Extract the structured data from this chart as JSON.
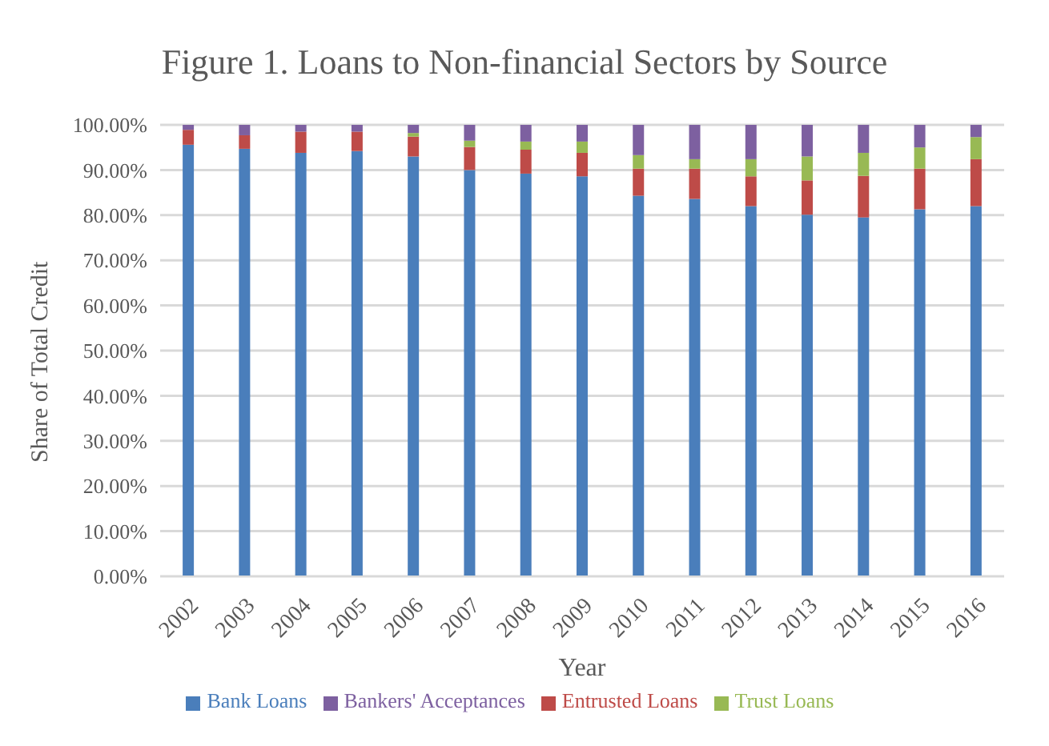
{
  "chart_data": {
    "type": "bar",
    "title": "Figure 1. Loans to Non-financial Sectors by Source",
    "xlabel": "Year",
    "ylabel": "Share of Total Credit",
    "stacked": true,
    "grid": "y",
    "legend": "bottom",
    "categories": [
      "2002",
      "2003",
      "2004",
      "2005",
      "2006",
      "2007",
      "2008",
      "2009",
      "2010",
      "2011",
      "2012",
      "2013",
      "2014",
      "2015",
      "2016"
    ],
    "ylim": [
      0,
      100
    ],
    "yticks": [
      {
        "value": 0,
        "label": "0.00%"
      },
      {
        "value": 10,
        "label": "10.00%"
      },
      {
        "value": 20,
        "label": "20.00%"
      },
      {
        "value": 30,
        "label": "30.00%"
      },
      {
        "value": 40,
        "label": "40.00%"
      },
      {
        "value": 50,
        "label": "50.00%"
      },
      {
        "value": 60,
        "label": "60.00%"
      },
      {
        "value": 70,
        "label": "70.00%"
      },
      {
        "value": 80,
        "label": "80.00%"
      },
      {
        "value": 90,
        "label": "90.00%"
      },
      {
        "value": 100,
        "label": "100.00%"
      }
    ],
    "series": [
      {
        "name": "Bank Loans",
        "color": "#4a7ebb",
        "values": [
          95.6,
          94.7,
          93.8,
          94.2,
          93.0,
          90.0,
          89.2,
          88.6,
          84.3,
          83.6,
          82.0,
          80.1,
          79.5,
          81.3,
          82.0
        ]
      },
      {
        "name": "Entrusted Loans",
        "color": "#be4b48",
        "values": [
          3.3,
          3.0,
          4.7,
          4.3,
          4.4,
          5.1,
          5.3,
          5.2,
          6.0,
          6.7,
          6.6,
          7.6,
          9.2,
          9.0,
          10.4
        ]
      },
      {
        "name": "Trust Loans",
        "color": "#98b954",
        "values": [
          0,
          0,
          0,
          0,
          0.8,
          1.4,
          1.8,
          2.5,
          3.0,
          2.1,
          3.8,
          5.3,
          5.1,
          4.7,
          4.9
        ]
      },
      {
        "name": "Bankers' Acceptances",
        "color": "#7d60a0",
        "values": [
          1.1,
          2.3,
          1.5,
          1.5,
          1.8,
          3.5,
          3.7,
          3.7,
          6.7,
          7.6,
          7.6,
          7.0,
          6.2,
          5.0,
          2.7
        ]
      }
    ]
  }
}
